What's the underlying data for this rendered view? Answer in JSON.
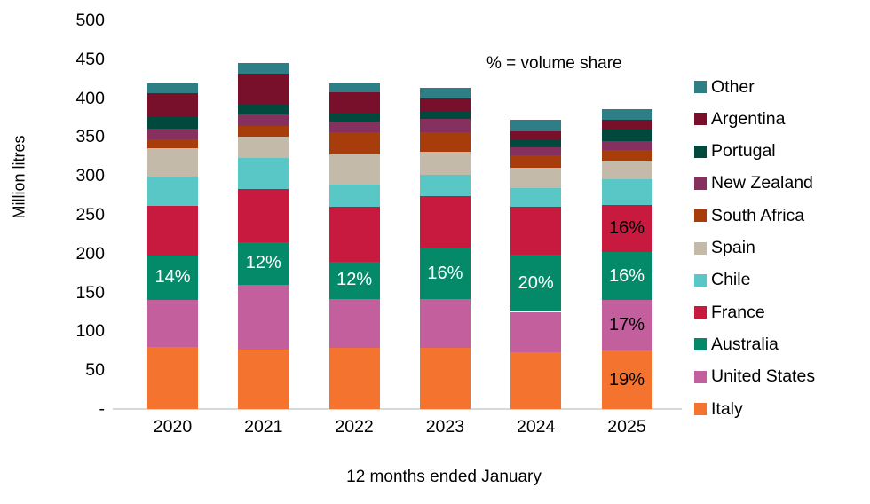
{
  "annotation": "% = volume share",
  "y_axis": {
    "title": "Million litres",
    "zero_label": "-"
  },
  "x_axis": {
    "title": "12 months ended January"
  },
  "chart_data": {
    "type": "bar",
    "subtype": "stacked-bar",
    "title": "",
    "annotation": "% = volume share",
    "xlabel": "12 months ended January",
    "ylabel": "Million litres",
    "ylim": [
      0,
      500
    ],
    "ytick_step": 50,
    "zero_tick_label": "-",
    "grid": false,
    "legend_position": "right",
    "categories": [
      "2020",
      "2021",
      "2022",
      "2023",
      "2024",
      "2025"
    ],
    "series": [
      {
        "name": "Italy",
        "color": "#f4742f",
        "values": [
          80,
          76,
          79,
          79,
          73,
          75
        ]
      },
      {
        "name": "United States",
        "color": "#c45f9e",
        "values": [
          60,
          84,
          63,
          62,
          52,
          65
        ]
      },
      {
        "name": "Australia",
        "color": "#048a68",
        "values": [
          58,
          55,
          48,
          67,
          74,
          62
        ]
      },
      {
        "name": "France",
        "color": "#c8193f",
        "values": [
          63,
          68,
          70,
          66,
          61,
          61
        ]
      },
      {
        "name": "Chile",
        "color": "#5ac7c7",
        "values": [
          38,
          40,
          29,
          27,
          24,
          33
        ]
      },
      {
        "name": "Spain",
        "color": "#c3baaa",
        "values": [
          37,
          28,
          39,
          30,
          27,
          23
        ]
      },
      {
        "name": "South Africa",
        "color": "#a63d0a",
        "values": [
          11,
          13,
          28,
          25,
          15,
          14
        ]
      },
      {
        "name": "New Zealand",
        "color": "#85305f",
        "values": [
          14,
          15,
          14,
          17,
          11,
          12
        ]
      },
      {
        "name": "Portugal",
        "color": "#00493c",
        "values": [
          15,
          13,
          11,
          11,
          10,
          15
        ]
      },
      {
        "name": "Argentina",
        "color": "#78102c",
        "values": [
          30,
          40,
          26,
          15,
          10,
          12
        ]
      },
      {
        "name": "Other",
        "color": "#2e7e86",
        "values": [
          13,
          13,
          12,
          14,
          15,
          14
        ]
      }
    ],
    "bar_labels": [
      {
        "category": "2020",
        "series": "Australia",
        "text": "14%",
        "color": "#ffffff"
      },
      {
        "category": "2021",
        "series": "Australia",
        "text": "12%",
        "color": "#ffffff"
      },
      {
        "category": "2022",
        "series": "Australia",
        "text": "12%",
        "color": "#ffffff"
      },
      {
        "category": "2023",
        "series": "Australia",
        "text": "16%",
        "color": "#ffffff"
      },
      {
        "category": "2024",
        "series": "Australia",
        "text": "20%",
        "color": "#ffffff"
      },
      {
        "category": "2025",
        "series": "France",
        "text": "16%",
        "color": "#000000"
      },
      {
        "category": "2025",
        "series": "Australia",
        "text": "16%",
        "color": "#ffffff"
      },
      {
        "category": "2025",
        "series": "United States",
        "text": "17%",
        "color": "#000000"
      },
      {
        "category": "2025",
        "series": "Italy",
        "text": "19%",
        "color": "#000000"
      }
    ]
  }
}
